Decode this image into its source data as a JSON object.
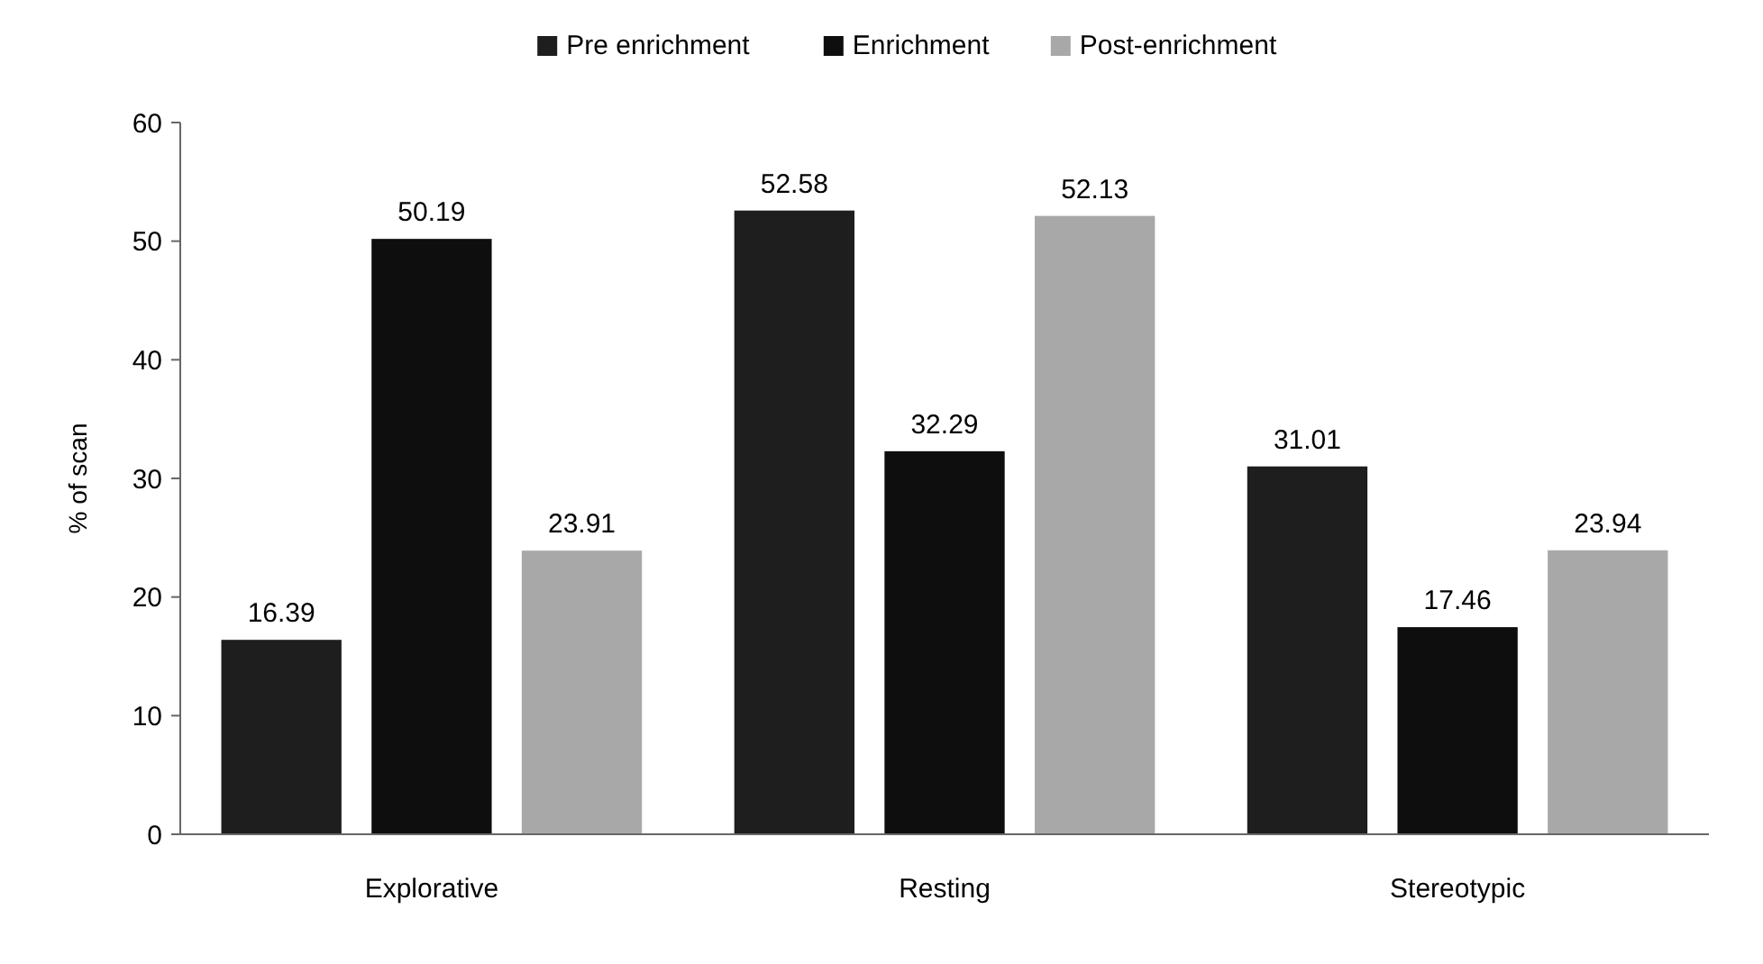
{
  "chart_data": {
    "type": "bar",
    "ylabel": "% of scan",
    "categories": [
      "Explorative",
      "Resting",
      "Stereotypic"
    ],
    "series": [
      {
        "name": "Pre enrichment",
        "color": "#1e1e1e",
        "values": [
          16.39,
          52.58,
          31.01
        ]
      },
      {
        "name": "Enrichment",
        "color": "#0e0e0e",
        "values": [
          50.19,
          32.29,
          17.46
        ]
      },
      {
        "name": "Post-enrichment",
        "color": "#a8a8a8",
        "values": [
          23.91,
          52.13,
          23.94
        ]
      }
    ],
    "ylim": [
      0,
      60
    ],
    "yticks": [
      0,
      10,
      20,
      30,
      40,
      50,
      60
    ],
    "grid": false,
    "legend": "top",
    "data_labels": true
  }
}
